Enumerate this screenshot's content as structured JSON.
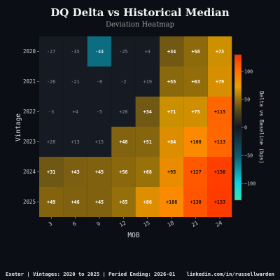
{
  "chart_data": {
    "type": "heatmap",
    "title": "DQ Delta vs Historical Median",
    "subtitle": "Deviation Heatmap",
    "xlabel": "MOB",
    "ylabel": "Vintage",
    "x_categories": [
      "3",
      "6",
      "9",
      "12",
      "15",
      "18",
      "21",
      "24"
    ],
    "y_categories": [
      "2020",
      "2021",
      "2022",
      "2023",
      "2024",
      "2025"
    ],
    "values": [
      [
        -27,
        -35,
        -44,
        -25,
        3,
        34,
        58,
        73
      ],
      [
        -26,
        -21,
        -8,
        -2,
        19,
        55,
        63,
        79
      ],
      [
        -3,
        4,
        -5,
        28,
        34,
        71,
        75,
        115
      ],
      [
        28,
        13,
        15,
        48,
        51,
        84,
        108,
        113
      ],
      [
        31,
        43,
        45,
        56,
        68,
        95,
        127,
        150
      ],
      [
        49,
        46,
        45,
        65,
        86,
        108,
        130,
        153
      ]
    ],
    "cell_labels": [
      [
        "-27",
        "-35",
        "-44",
        "-25",
        "+3",
        "+34",
        "+58",
        "+73"
      ],
      [
        "-26",
        "-21",
        "-8",
        "-2",
        "+19",
        "+55",
        "+63",
        "+79"
      ],
      [
        "-3",
        "+4",
        "-5",
        "+28",
        "+34",
        "+71",
        "+75",
        "+115"
      ],
      [
        "+28",
        "+13",
        "+15",
        "+48",
        "+51",
        "+84",
        "+108",
        "+113"
      ],
      [
        "+31",
        "+43",
        "+45",
        "+56",
        "+68",
        "+95",
        "+127",
        "+150"
      ],
      [
        "+49",
        "+46",
        "+45",
        "+65",
        "+86",
        "+108",
        "+130",
        "+153"
      ]
    ],
    "colorbar": {
      "label": "Delta vs Baseline (bps)",
      "range": [
        -130,
        130
      ],
      "ticks": [
        100,
        50,
        0,
        -50,
        -100
      ],
      "tick_labels": [
        "100",
        "50",
        "0",
        "−50",
        "−100"
      ]
    }
  },
  "footer": {
    "left": "Exeter | Vintages: 2020 to 2025 | Period Ending: 2026-01",
    "right": "linkedin.com/in/russellwarden"
  },
  "colors": {
    "background": "#0b0e14",
    "near_zero": "#161a22",
    "negative": "#0d6d80",
    "positive_low": "#7a5e10",
    "positive_mid": "#f2a500",
    "positive_high": "#ff3a00"
  }
}
